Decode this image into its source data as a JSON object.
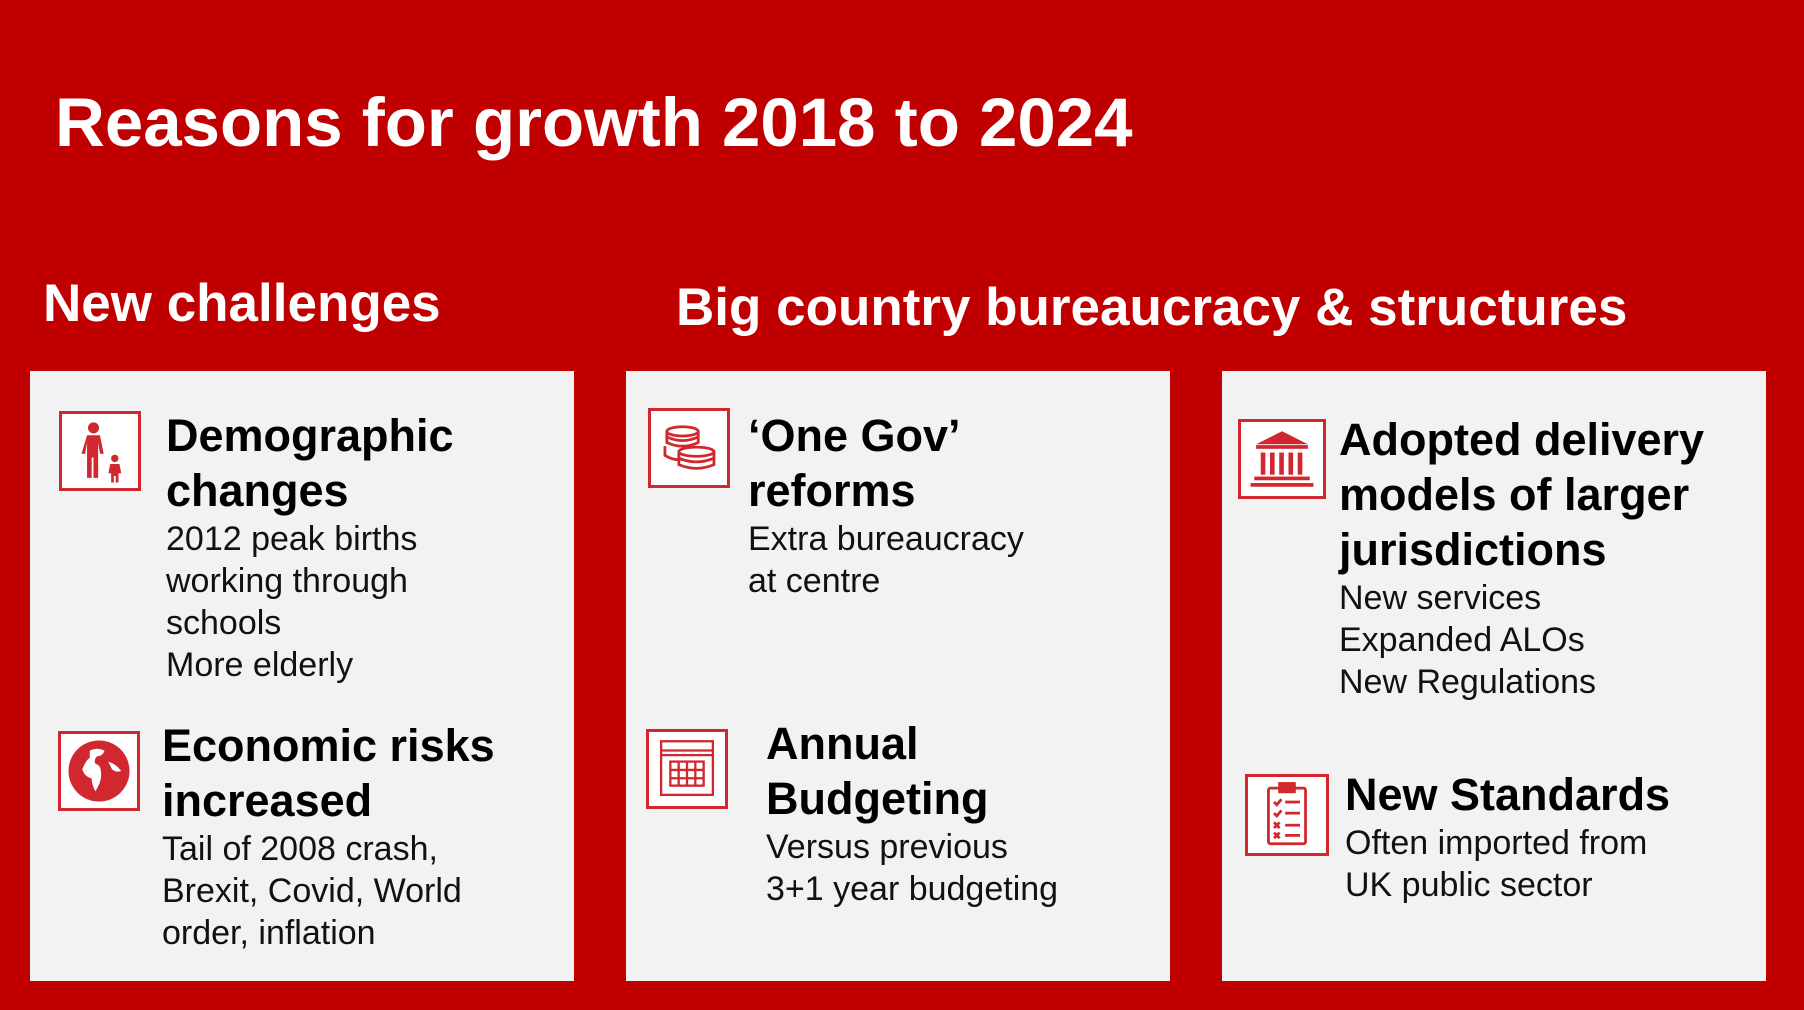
{
  "title": "Reasons for growth 2018 to 2024",
  "sections": {
    "left": "New challenges",
    "right": "Big country bureaucracy & structures"
  },
  "colors": {
    "background": "#c00000",
    "panel": "#f2f2f2",
    "icon_accent": "#d0282e"
  },
  "items": {
    "demographic": {
      "icon": "family-icon",
      "title": [
        "Demographic",
        "changes"
      ],
      "desc": [
        "2012 peak births",
        "working through",
        "schools",
        "More elderly"
      ]
    },
    "economic": {
      "icon": "globe-icon",
      "title": [
        "Economic risks",
        "increased"
      ],
      "desc": [
        "Tail of 2008 crash,",
        "Brexit, Covid, World",
        "order, inflation"
      ]
    },
    "onegov": {
      "icon": "coins-icon",
      "title": [
        "‘One Gov’",
        "reforms"
      ],
      "desc": [
        "Extra bureaucracy",
        "at centre"
      ]
    },
    "budgeting": {
      "icon": "calendar-icon",
      "title": [
        "Annual",
        "Budgeting"
      ],
      "desc": [
        "Versus previous",
        "3+1 year budgeting"
      ]
    },
    "delivery": {
      "icon": "government-building-icon",
      "title": [
        "Adopted delivery",
        "models of larger",
        "jurisdictions"
      ],
      "desc": [
        "New services",
        "Expanded ALOs",
        "New Regulations"
      ]
    },
    "standards": {
      "icon": "clipboard-checklist-icon",
      "title": [
        "New Standards"
      ],
      "desc": [
        "Often imported from",
        "UK public sector"
      ]
    }
  }
}
